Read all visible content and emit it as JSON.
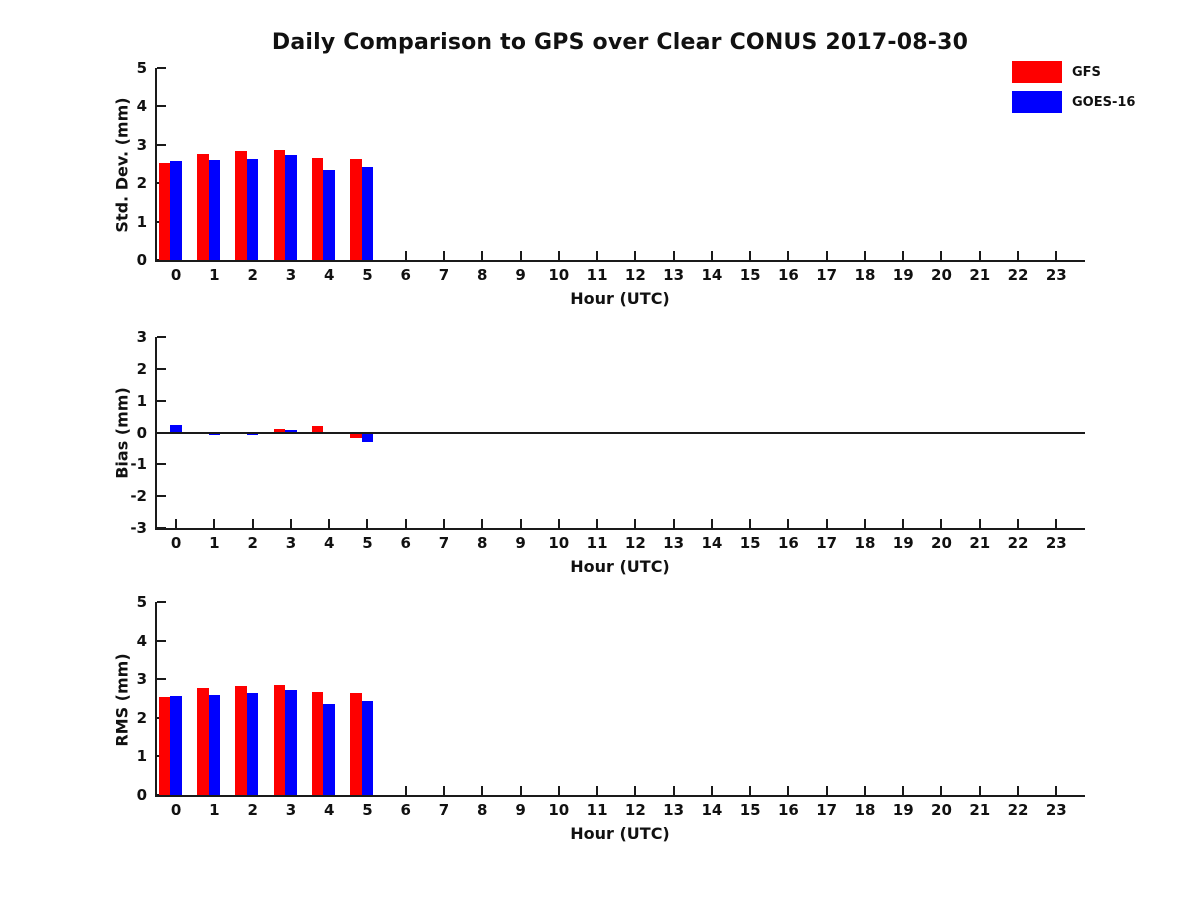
{
  "title": "Daily Comparison to GPS over Clear CONUS 2017-08-30",
  "legend": {
    "entries": [
      {
        "label": "GFS",
        "color": "#fe0000"
      },
      {
        "label": "GOES-16",
        "color": "#0000fe"
      }
    ]
  },
  "colors": {
    "gfs": "#fe0000",
    "goes16": "#0000fe",
    "axis": "#1a1a1a",
    "background": "#ffffff"
  },
  "chart_data": [
    {
      "type": "bar",
      "ylabel": "Std. Dev. (mm)",
      "xlabel": "Hour (UTC)",
      "categories": [
        0,
        1,
        2,
        3,
        4,
        5,
        6,
        7,
        8,
        9,
        10,
        11,
        12,
        13,
        14,
        15,
        16,
        17,
        18,
        19,
        20,
        21,
        22,
        23
      ],
      "xlim": [
        -0.5,
        23.75
      ],
      "ylim": [
        0,
        5
      ],
      "yticks": [
        0,
        1,
        2,
        3,
        4,
        5
      ],
      "zero_line": false,
      "series": [
        {
          "name": "GFS",
          "color": "#fe0000",
          "values": [
            2.52,
            2.77,
            2.83,
            2.86,
            2.66,
            2.63,
            null,
            null,
            null,
            null,
            null,
            null,
            null,
            null,
            null,
            null,
            null,
            null,
            null,
            null,
            null,
            null,
            null,
            null
          ]
        },
        {
          "name": "GOES-16",
          "color": "#0000fe",
          "values": [
            2.57,
            2.6,
            2.64,
            2.73,
            2.35,
            2.43,
            null,
            null,
            null,
            null,
            null,
            null,
            null,
            null,
            null,
            null,
            null,
            null,
            null,
            null,
            null,
            null,
            null,
            null
          ]
        }
      ]
    },
    {
      "type": "bar",
      "ylabel": "Bias (mm)",
      "xlabel": "Hour (UTC)",
      "categories": [
        0,
        1,
        2,
        3,
        4,
        5,
        6,
        7,
        8,
        9,
        10,
        11,
        12,
        13,
        14,
        15,
        16,
        17,
        18,
        19,
        20,
        21,
        22,
        23
      ],
      "xlim": [
        -0.5,
        23.75
      ],
      "ylim": [
        -3,
        3
      ],
      "yticks": [
        -3,
        -2,
        -1,
        0,
        1,
        2,
        3
      ],
      "zero_line": true,
      "series": [
        {
          "name": "GFS",
          "color": "#fe0000",
          "values": [
            0.01,
            -0.05,
            -0.05,
            0.1,
            0.2,
            -0.18,
            null,
            null,
            null,
            null,
            null,
            null,
            null,
            null,
            null,
            null,
            null,
            null,
            null,
            null,
            null,
            null,
            null,
            null
          ]
        },
        {
          "name": "GOES-16",
          "color": "#0000fe",
          "values": [
            0.25,
            -0.08,
            -0.07,
            0.07,
            0.03,
            -0.3,
            null,
            null,
            null,
            null,
            null,
            null,
            null,
            null,
            null,
            null,
            null,
            null,
            null,
            null,
            null,
            null,
            null,
            null
          ]
        }
      ]
    },
    {
      "type": "bar",
      "ylabel": "RMS (mm)",
      "xlabel": "Hour (UTC)",
      "categories": [
        0,
        1,
        2,
        3,
        4,
        5,
        6,
        7,
        8,
        9,
        10,
        11,
        12,
        13,
        14,
        15,
        16,
        17,
        18,
        19,
        20,
        21,
        22,
        23
      ],
      "xlim": [
        -0.5,
        23.75
      ],
      "ylim": [
        0,
        5
      ],
      "yticks": [
        0,
        1,
        2,
        3,
        4,
        5
      ],
      "zero_line": false,
      "series": [
        {
          "name": "GFS",
          "color": "#fe0000",
          "values": [
            2.53,
            2.77,
            2.82,
            2.85,
            2.66,
            2.63,
            null,
            null,
            null,
            null,
            null,
            null,
            null,
            null,
            null,
            null,
            null,
            null,
            null,
            null,
            null,
            null,
            null,
            null
          ]
        },
        {
          "name": "GOES-16",
          "color": "#0000fe",
          "values": [
            2.57,
            2.6,
            2.63,
            2.73,
            2.35,
            2.43,
            null,
            null,
            null,
            null,
            null,
            null,
            null,
            null,
            null,
            null,
            null,
            null,
            null,
            null,
            null,
            null,
            null,
            null
          ]
        }
      ]
    }
  ]
}
